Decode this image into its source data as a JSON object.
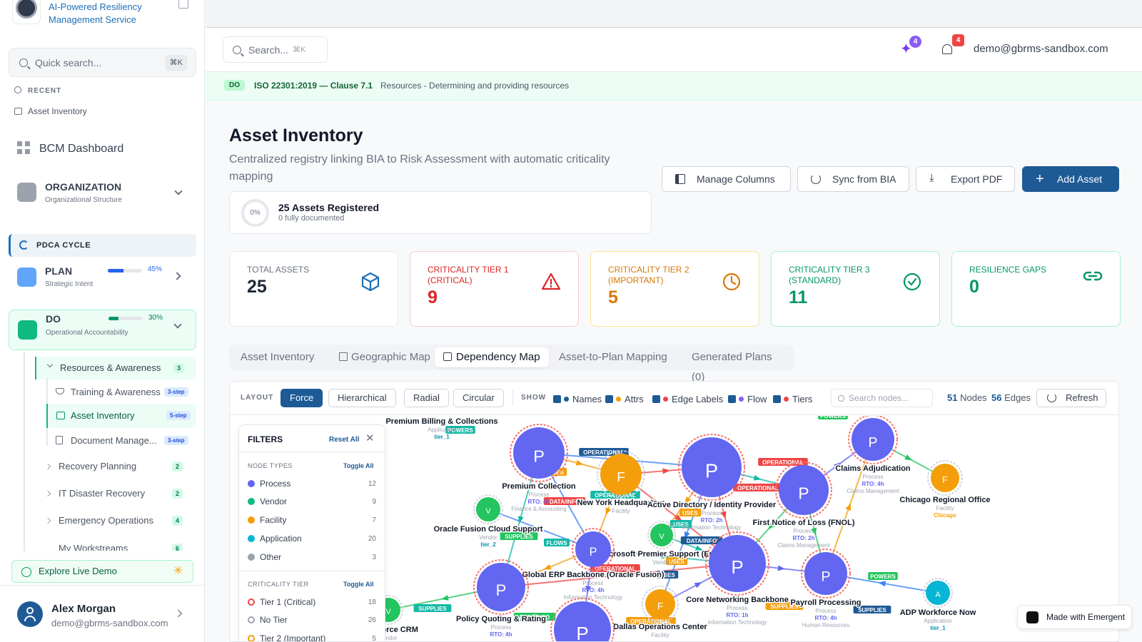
{
  "sidebar": {
    "brand": "AI-Powered Resiliency Management Service",
    "quick_search": "Quick search...",
    "quick_search_kbd": "⌘K",
    "recent_label": "RECENT",
    "recent_item": "Asset Inventory",
    "dashboard": "BCM Dashboard",
    "organization": {
      "title": "ORGANIZATION",
      "subtitle": "Organizational Structure"
    },
    "pdca": "PDCA CYCLE",
    "plan": {
      "title": "PLAN",
      "subtitle": "Strategic Intent",
      "progress": "45%",
      "progress_value": 45
    },
    "do": {
      "title": "DO",
      "subtitle": "Operational Accountability",
      "progress": "30%",
      "progress_value": 30
    },
    "items": [
      {
        "label": "Resources & Awareness",
        "count": "3"
      },
      {
        "label": "Training & Awareness",
        "badge": "3-step"
      },
      {
        "label": "Asset Inventory",
        "badge": "5-step"
      },
      {
        "label": "Document Manage...",
        "badge": "3-step"
      },
      {
        "label": "Recovery Planning",
        "count": "2"
      },
      {
        "label": "IT Disaster Recovery",
        "count": "2"
      },
      {
        "label": "Emergency Operations",
        "count": "4"
      },
      {
        "label": "My Workstreams",
        "count": "6"
      }
    ],
    "explore": "Explore Live Demo",
    "user": {
      "name": "Alex Morgan",
      "email": "demo@gbrms-sandbox.com"
    }
  },
  "header": {
    "search": "Search...",
    "search_kbd": "⌘K",
    "ai_count": "4",
    "notif_count": "4",
    "email": "demo@gbrms-sandbox.com"
  },
  "iso": {
    "tag": "DO",
    "clause": "ISO 22301:2019 — Clause 7.1",
    "text": "Resources - Determining and providing resources"
  },
  "page": {
    "title": "Asset Inventory",
    "description": "Centralized registry linking BIA to Risk Assessment with automatic criticality mapping",
    "registered": "25 Assets Registered",
    "documented": "0 fully documented",
    "doc_pct": "0%",
    "buttons": {
      "manage": "Manage Columns",
      "sync": "Sync from BIA",
      "export": "Export PDF",
      "add": "Add Asset"
    }
  },
  "stats": [
    {
      "label": "TOTAL ASSETS",
      "value": "25",
      "color": "#1f2937",
      "icon": "cube-icon"
    },
    {
      "label": "CRITICALITY TIER 1 (CRITICAL)",
      "value": "9",
      "color": "#dc2626",
      "icon": "warning-icon"
    },
    {
      "label": "CRITICALITY TIER 2 (IMPORTANT)",
      "value": "5",
      "color": "#d97706",
      "icon": "clock-icon"
    },
    {
      "label": "CRITICALITY TIER 3 (STANDARD)",
      "value": "11",
      "color": "#059669",
      "icon": "check-circle-icon"
    },
    {
      "label": "RESILIENCE GAPS",
      "value": "0",
      "color": "#059669",
      "icon": "link-icon"
    }
  ],
  "tabs": [
    "Asset Inventory",
    "Geographic Map",
    "Dependency Map",
    "Asset-to-Plan Mapping",
    "Generated Plans (0)"
  ],
  "toolbar": {
    "layout_label": "LAYOUT",
    "layouts": [
      "Force",
      "Hierarchical",
      "Radial",
      "Circular"
    ],
    "show_label": "SHOW",
    "show": [
      {
        "label": "Names",
        "color": "#1e5a96"
      },
      {
        "label": "Attrs",
        "color": "#f59e0b"
      },
      {
        "label": "Edge Labels",
        "color": "#ef4444"
      },
      {
        "label": "Flow",
        "color": "#8b5cf6"
      },
      {
        "label": "Tiers",
        "color": "#ef4444"
      }
    ],
    "search_nodes": "Search nodes...",
    "nodes_count": "51",
    "nodes_label": "Nodes",
    "edges_count": "56",
    "edges_label": "Edges",
    "refresh": "Refresh"
  },
  "filters": {
    "title": "FILTERS",
    "reset": "Reset All",
    "node_types_label": "NODE TYPES",
    "toggle_all": "Toggle All",
    "node_types": [
      {
        "label": "Process",
        "count": "12",
        "color": "#6366f1"
      },
      {
        "label": "Vendor",
        "count": "9",
        "color": "#10b981"
      },
      {
        "label": "Facility",
        "count": "7",
        "color": "#f59e0b"
      },
      {
        "label": "Application",
        "count": "20",
        "color": "#06b6d4"
      },
      {
        "label": "Other",
        "count": "3",
        "color": "#9ca3af"
      }
    ],
    "tier_label": "CRITICALITY TIER",
    "tiers": [
      {
        "label": "Tier 1 (Critical)",
        "count": "18",
        "color": "#ef4444"
      },
      {
        "label": "No Tier",
        "count": "26",
        "color": "#9ca3af"
      },
      {
        "label": "Tier 2 (Important)",
        "count": "5",
        "color": "#f59e0b"
      }
    ]
  },
  "graph": {
    "nodes": [
      {
        "letter": "P",
        "name": "Premium Collection",
        "sub": "Process",
        "rto": "RTO: 4h",
        "dept": "Finance & Accounting",
        "type": "process"
      },
      {
        "letter": "F",
        "name": "New York Headquarters",
        "sub": "Facility",
        "type": "facility"
      },
      {
        "letter": "P",
        "name": "Active Directory / Identity Provider",
        "sub": "Process",
        "rto": "RTO: 2h",
        "dept": "Information Technology",
        "type": "process"
      },
      {
        "letter": "P",
        "name": "First Notice of Loss (FNOL)",
        "sub": "Process",
        "rto": "RTO: 2h",
        "dept": "Claims Management",
        "type": "process"
      },
      {
        "letter": "P",
        "name": "Claims Adjudication",
        "sub": "Process",
        "rto": "RTO: 4h",
        "dept": "Claims Management",
        "type": "process"
      },
      {
        "letter": "F",
        "name": "Chicago Regional Office",
        "sub": "Facility",
        "attr": "Chicago",
        "type": "facility"
      },
      {
        "letter": "V",
        "name": "Oracle Fusion Cloud Support",
        "sub": "Vendor",
        "attr": "tier_2",
        "type": "vendor"
      },
      {
        "letter": "V",
        "name": "Microsoft Premier Support (Ent...",
        "sub": "Vendor",
        "type": "vendor"
      },
      {
        "letter": "P",
        "name": "Global ERP Backbone (Oracle Fusion)",
        "sub": "Process",
        "rto": "RTO: 4h",
        "dept": "Information Technology",
        "type": "process"
      },
      {
        "letter": "P",
        "name": "Core Networking Backbone",
        "sub": "Process",
        "rto": "RTO: 1h",
        "dept": "Information Technology",
        "type": "process"
      },
      {
        "letter": "P",
        "name": "Payroll Processing",
        "sub": "Process",
        "rto": "RTO: 4h",
        "dept": "Human Resources",
        "type": "process"
      },
      {
        "letter": "P",
        "name": "Policy Quoting & Rating",
        "sub": "Process",
        "rto": "RTO: 4h",
        "type": "process"
      },
      {
        "letter": "F",
        "name": "Dallas Operations Center",
        "sub": "Facility",
        "type": "facility"
      },
      {
        "letter": "A",
        "name": "ADP Workforce Now",
        "sub": "Application",
        "attr": "tier_1",
        "type": "application"
      },
      {
        "letter": "V",
        "name": "Salesforce CRM",
        "sub": "Vendor",
        "type": "vendor"
      },
      {
        "letter": "P",
        "name": "",
        "type": "process"
      }
    ],
    "top_label": {
      "name": "Premium Billing & Collections",
      "sub": "Application",
      "attr": "tier_1"
    },
    "edge_labels": [
      "POWERS",
      "USES",
      "OPERATIONAL",
      "DATA/INFO",
      "SUPPLIES",
      "OPERATIONAL",
      "USES",
      "DATA/INFO",
      "OPERATIONAL",
      "POWERS",
      "SUPPLIES",
      "SUPPLIES",
      "USES",
      "OPERATIONAL",
      "DATA/INFO",
      "FLOWS",
      "USES",
      "SUPPLIES",
      "OPERATIONAL",
      "POWERS",
      "USES",
      "OPERATIONAL"
    ]
  },
  "made_with": "Made with Emergent"
}
